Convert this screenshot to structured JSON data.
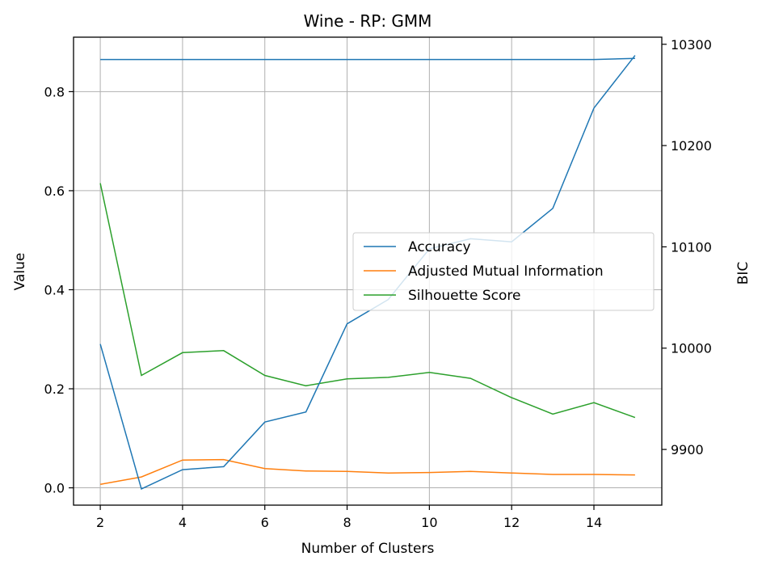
{
  "chart_data": {
    "type": "line",
    "title": "Wine - RP: GMM",
    "xlabel": "Number of Clusters",
    "ylabel": "Value",
    "y2label": "BIC",
    "xlim": [
      1.35,
      15.65
    ],
    "ylim": [
      -0.035,
      0.91
    ],
    "y2lim": [
      9845,
      10307
    ],
    "xticks": [
      2,
      4,
      6,
      8,
      10,
      12,
      14
    ],
    "yticks": [
      0.0,
      0.2,
      0.4,
      0.6,
      0.8
    ],
    "y2ticks": [
      9900,
      10000,
      10100,
      10200,
      10300
    ],
    "grid": true,
    "legend_position": "center-right",
    "x": [
      2,
      3,
      4,
      5,
      6,
      7,
      8,
      9,
      10,
      11,
      12,
      13,
      14,
      15
    ],
    "series": [
      {
        "name": "Accuracy",
        "axis": "left",
        "color": "#1f77b4",
        "values": [
          0.865,
          0.865,
          0.865,
          0.865,
          0.865,
          0.865,
          0.865,
          0.865,
          0.865,
          0.865,
          0.865,
          0.865,
          0.865,
          0.867
        ]
      },
      {
        "name": "Adjusted Mutual Information",
        "axis": "left",
        "color": "#ff7f0e",
        "values": [
          0.007,
          0.022,
          0.056,
          0.057,
          0.039,
          0.034,
          0.033,
          0.03,
          0.031,
          0.033,
          0.03,
          0.027,
          0.027,
          0.026
        ]
      },
      {
        "name": "Silhouette Score",
        "axis": "left",
        "color": "#2ca02c",
        "values": [
          0.615,
          0.227,
          0.273,
          0.277,
          0.227,
          0.206,
          0.22,
          0.223,
          0.233,
          0.221,
          0.182,
          0.149,
          0.172,
          0.142
        ]
      },
      {
        "axis": "right",
        "color": "#1f77b4",
        "values": [
          10004,
          9861,
          9880,
          9883,
          9927,
          9937,
          10024,
          10048,
          10098,
          10108,
          10105,
          10138,
          10237,
          10289
        ]
      }
    ]
  }
}
